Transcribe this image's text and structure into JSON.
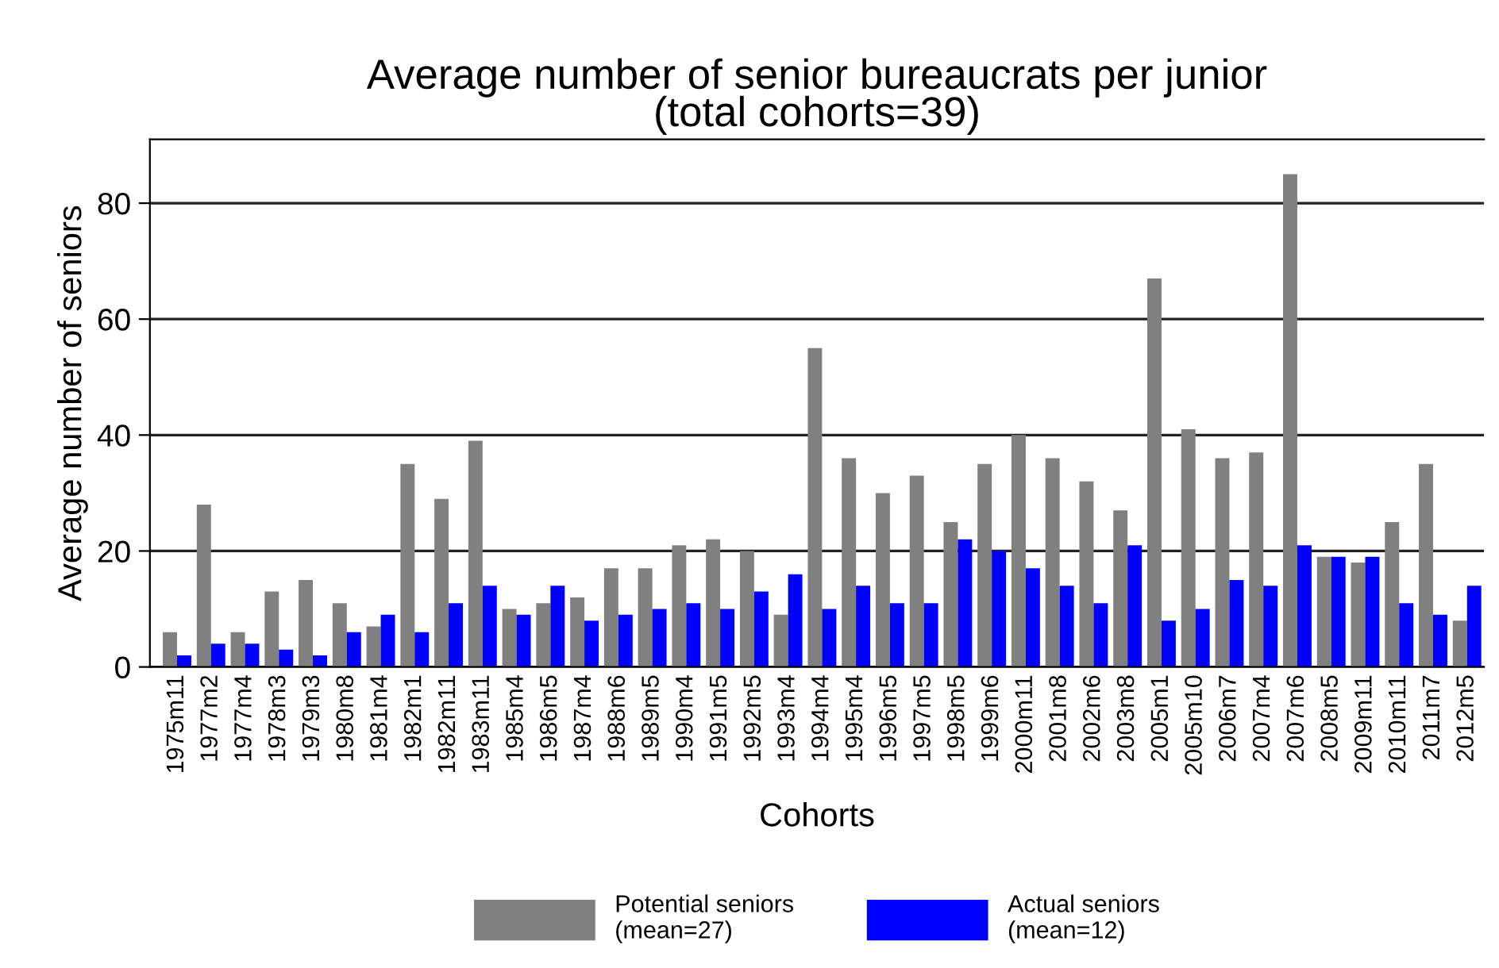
{
  "chart_data": {
    "type": "bar",
    "title": "Average number of senior bureaucrats per junior\n(total cohorts=39)",
    "xlabel": "Cohorts",
    "ylabel": "Average number of seniors",
    "categories": [
      "1975m11",
      "1977m2",
      "1977m4",
      "1978m3",
      "1979m3",
      "1980m8",
      "1981m4",
      "1982m1",
      "1982m11",
      "1983m11",
      "1985m4",
      "1986m5",
      "1987m4",
      "1988m6",
      "1989m5",
      "1990m4",
      "1991m5",
      "1992m5",
      "1993m4",
      "1994m4",
      "1995m4",
      "1996m5",
      "1997m5",
      "1998m5",
      "1999m6",
      "2000m11",
      "2001m8",
      "2002m6",
      "2003m8",
      "2005m1",
      "2005m10",
      "2006m7",
      "2007m4",
      "2007m6",
      "2008m5",
      "2009m11",
      "2010m11",
      "2011m7",
      "2012m5"
    ],
    "series": [
      {
        "name": "Potential seniors\n(mean=27)",
        "color": "#808080",
        "values": [
          6,
          28,
          6,
          13,
          15,
          11,
          7,
          35,
          29,
          39,
          10,
          11,
          12,
          17,
          17,
          21,
          22,
          20,
          9,
          55,
          36,
          30,
          33,
          25,
          35,
          40,
          36,
          32,
          27,
          67,
          41,
          36,
          37,
          85,
          19,
          18,
          25,
          35,
          8
        ]
      },
      {
        "name": "Actual seniors\n(mean=12)",
        "color": "#0000ff",
        "values": [
          2,
          4,
          4,
          3,
          2,
          6,
          9,
          6,
          11,
          14,
          9,
          14,
          8,
          9,
          10,
          11,
          10,
          13,
          16,
          10,
          14,
          11,
          11,
          22,
          20,
          17,
          14,
          11,
          21,
          8,
          10,
          15,
          14,
          21,
          19,
          19,
          11,
          9,
          14
        ]
      }
    ],
    "ylim": [
      0,
      91
    ],
    "yticks": [
      0,
      20,
      40,
      60,
      80
    ],
    "grid": "y",
    "legend": "bottom"
  }
}
